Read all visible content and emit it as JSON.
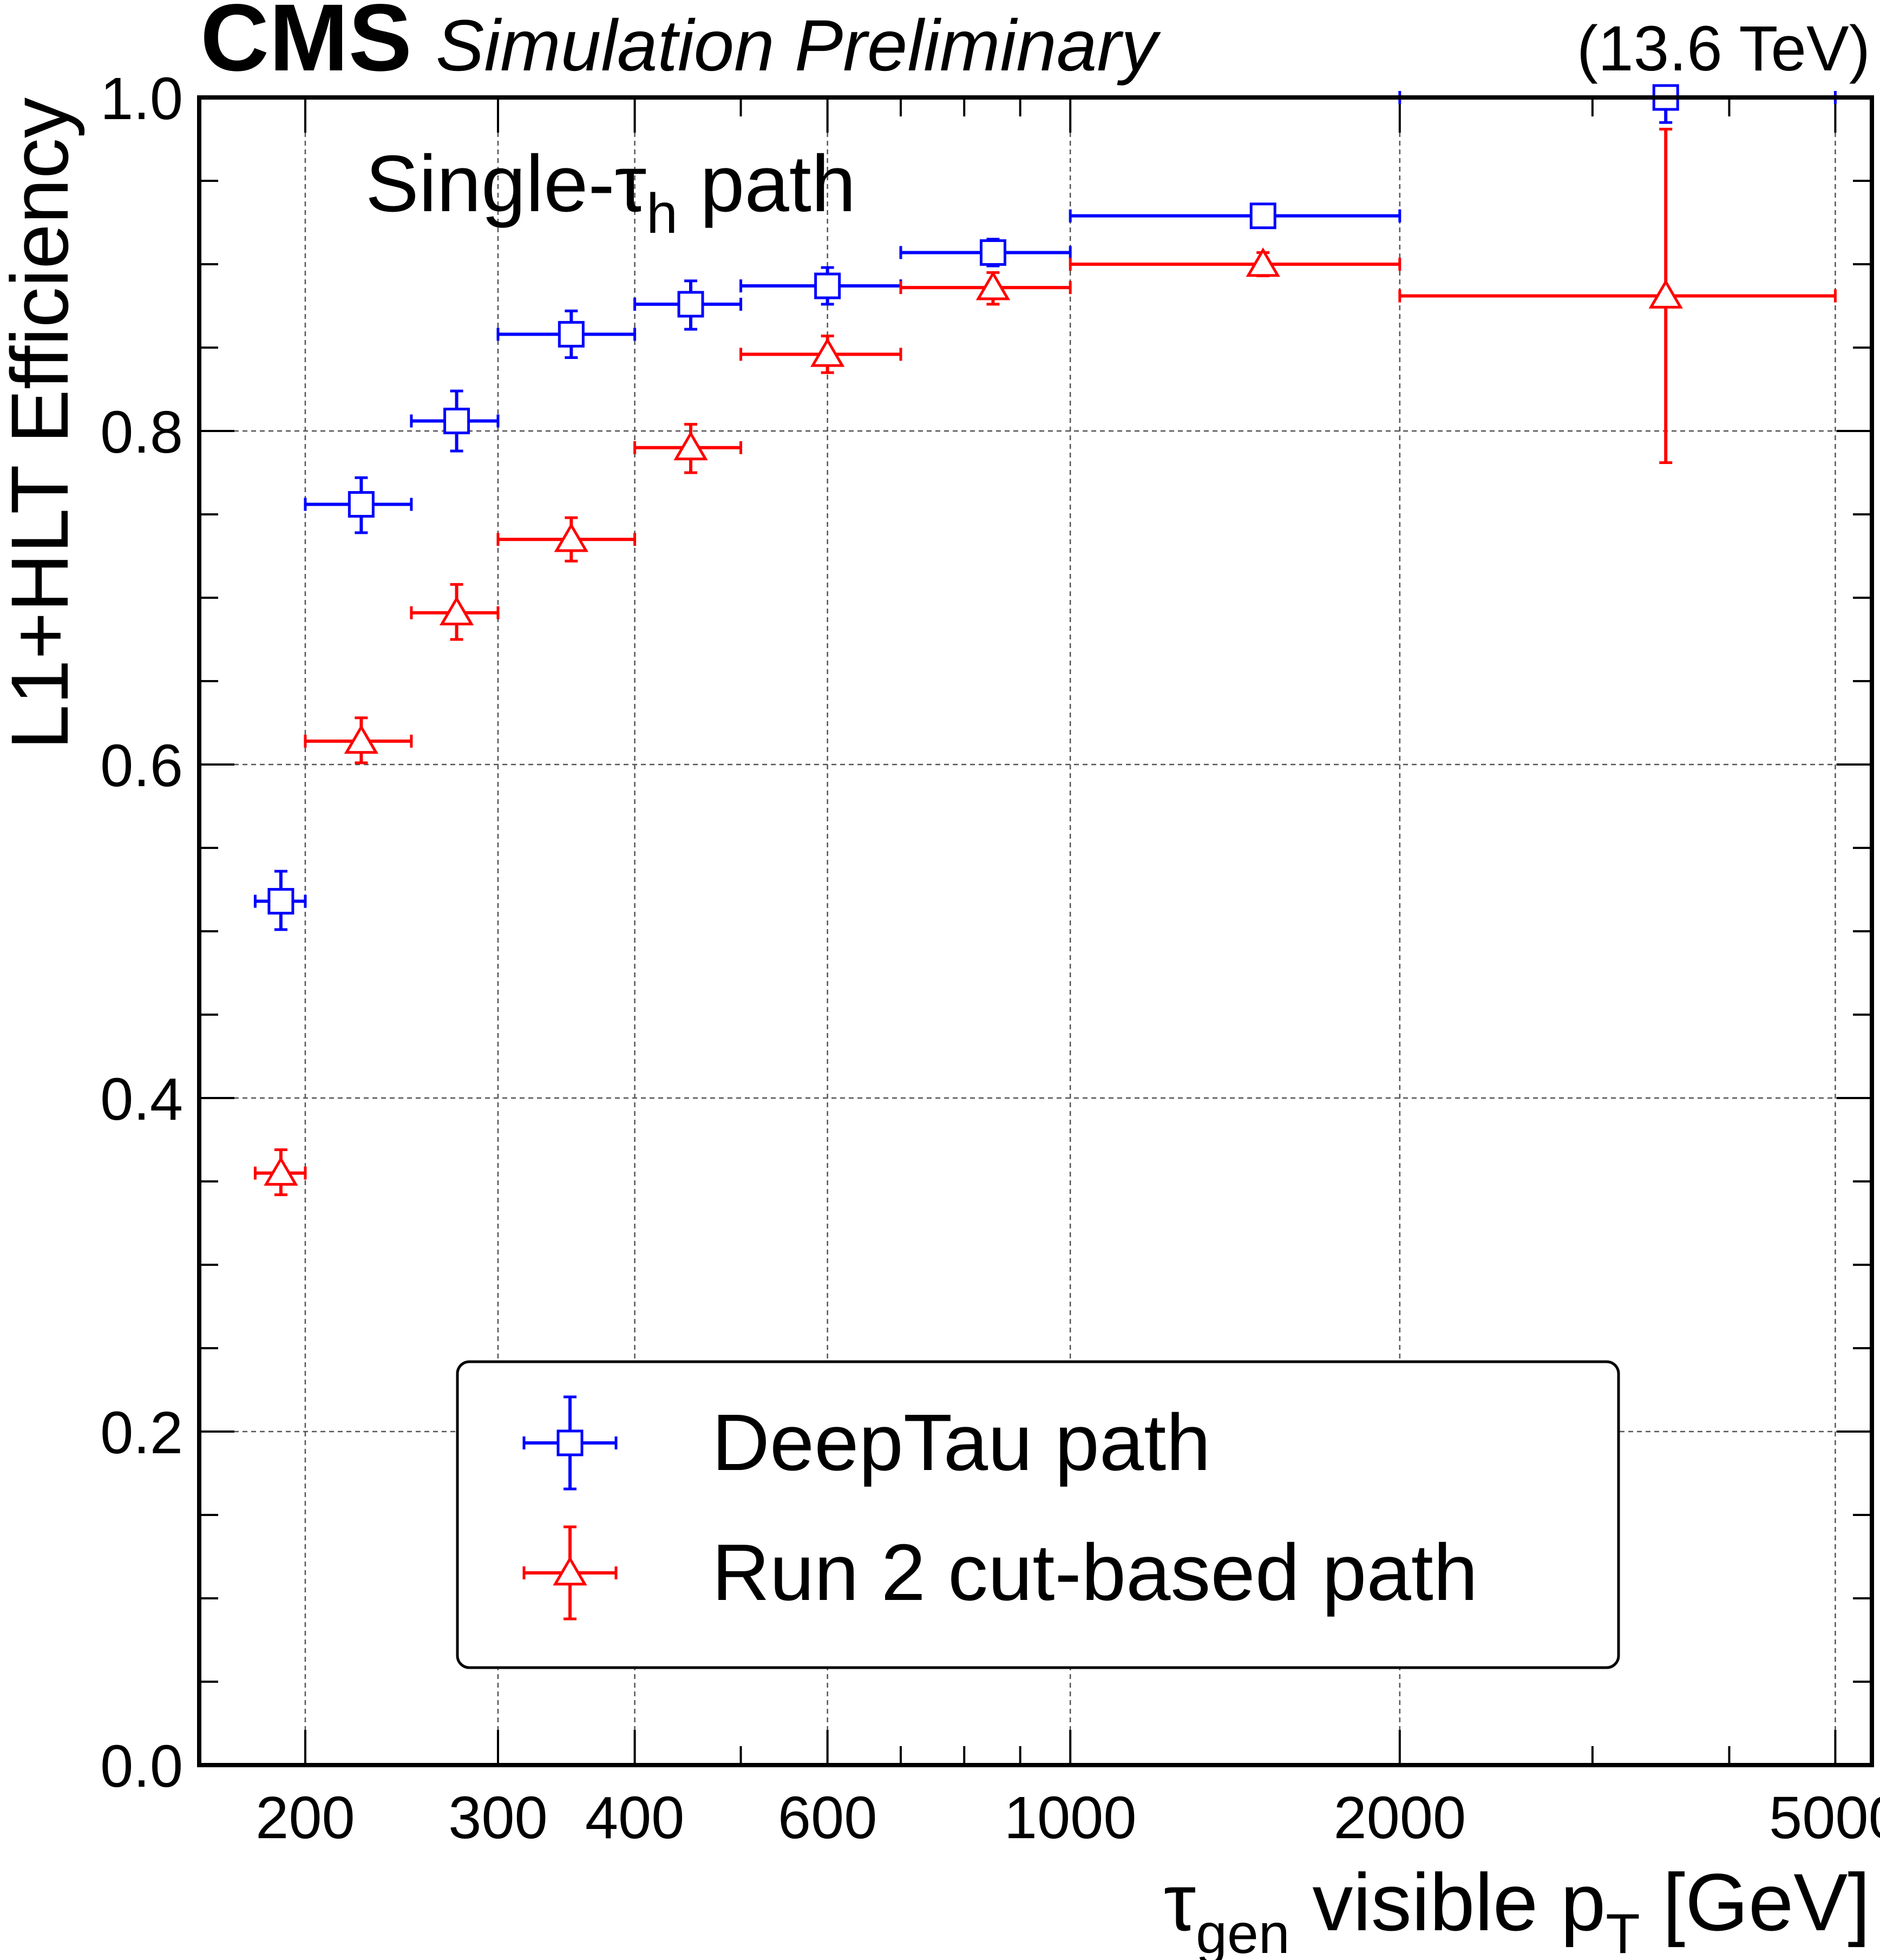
{
  "header": {
    "experiment": "CMS",
    "status": "Simulation Preliminary",
    "energy": "(13.6 TeV)"
  },
  "annotation": {
    "main": "Single-τ",
    "sub": "h",
    "rest": " path"
  },
  "chart_data": {
    "type": "scatter",
    "xscale": "log",
    "xlim": [
      160,
      5400
    ],
    "ylim": [
      0.0,
      1.0
    ],
    "grid": true,
    "xlabel": {
      "main": "τ",
      "sub": "gen",
      "mid": " visible p",
      "sub2": "T",
      "end": " [GeV]"
    },
    "ylabel": "L1+HLT Efficiency",
    "xticks_labeled": [
      200,
      300,
      400,
      600,
      1000,
      2000,
      5000
    ],
    "xtick_labels": [
      "200",
      "300",
      "400",
      "600",
      "1000",
      "2000",
      "5000"
    ],
    "yticks_labeled": [
      0.0,
      0.2,
      0.4,
      0.6,
      0.8,
      1.0
    ],
    "ytick_labels": [
      "0.0",
      "0.2",
      "0.4",
      "0.6",
      "0.8",
      "1.0"
    ],
    "legend_position": "bottom-center",
    "series": [
      {
        "name": "DeepTau path",
        "marker": "open-square",
        "color": "#0000ff",
        "points": [
          {
            "x": 190,
            "xlo": 180,
            "xhi": 200,
            "y": 0.518,
            "ylo": 0.501,
            "yhi": 0.536
          },
          {
            "x": 225,
            "xlo": 200,
            "xhi": 250,
            "y": 0.756,
            "ylo": 0.739,
            "yhi": 0.772
          },
          {
            "x": 275,
            "xlo": 250,
            "xhi": 300,
            "y": 0.806,
            "ylo": 0.788,
            "yhi": 0.824
          },
          {
            "x": 350,
            "xlo": 300,
            "xhi": 400,
            "y": 0.858,
            "ylo": 0.844,
            "yhi": 0.872
          },
          {
            "x": 450,
            "xlo": 400,
            "xhi": 500,
            "y": 0.876,
            "ylo": 0.861,
            "yhi": 0.89
          },
          {
            "x": 600,
            "xlo": 500,
            "xhi": 700,
            "y": 0.887,
            "ylo": 0.876,
            "yhi": 0.898
          },
          {
            "x": 850,
            "xlo": 700,
            "xhi": 1000,
            "y": 0.907,
            "ylo": 0.899,
            "yhi": 0.915
          },
          {
            "x": 1500,
            "xlo": 1000,
            "xhi": 2000,
            "y": 0.929,
            "ylo": 0.923,
            "yhi": 0.935
          },
          {
            "x": 3500,
            "xlo": 2000,
            "xhi": 5000,
            "y": 1.0,
            "ylo": 0.985,
            "yhi": 1.0
          }
        ]
      },
      {
        "name": "Run 2 cut-based path",
        "marker": "open-triangle",
        "color": "#ff0000",
        "points": [
          {
            "x": 190,
            "xlo": 180,
            "xhi": 200,
            "y": 0.355,
            "ylo": 0.342,
            "yhi": 0.369
          },
          {
            "x": 225,
            "xlo": 200,
            "xhi": 250,
            "y": 0.614,
            "ylo": 0.601,
            "yhi": 0.628
          },
          {
            "x": 275,
            "xlo": 250,
            "xhi": 300,
            "y": 0.691,
            "ylo": 0.675,
            "yhi": 0.708
          },
          {
            "x": 350,
            "xlo": 300,
            "xhi": 400,
            "y": 0.735,
            "ylo": 0.722,
            "yhi": 0.748
          },
          {
            "x": 450,
            "xlo": 400,
            "xhi": 500,
            "y": 0.79,
            "ylo": 0.775,
            "yhi": 0.804
          },
          {
            "x": 600,
            "xlo": 500,
            "xhi": 700,
            "y": 0.846,
            "ylo": 0.835,
            "yhi": 0.857
          },
          {
            "x": 850,
            "xlo": 700,
            "xhi": 1000,
            "y": 0.886,
            "ylo": 0.876,
            "yhi": 0.895
          },
          {
            "x": 1500,
            "xlo": 1000,
            "xhi": 2000,
            "y": 0.9,
            "ylo": 0.893,
            "yhi": 0.907
          },
          {
            "x": 3500,
            "xlo": 2000,
            "xhi": 5000,
            "y": 0.881,
            "ylo": 0.781,
            "yhi": 0.981
          }
        ]
      }
    ]
  }
}
